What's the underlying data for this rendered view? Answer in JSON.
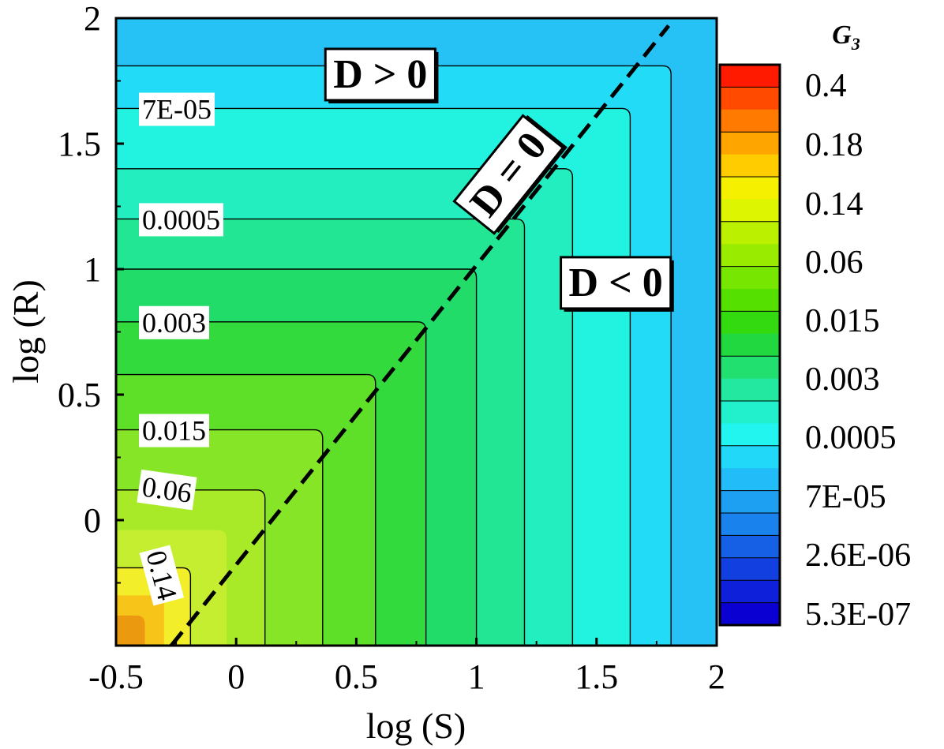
{
  "chart_data": {
    "type": "heatmap",
    "xlabel": "log (S)",
    "ylabel": "log (R)",
    "xlim": [
      -0.5,
      2
    ],
    "ylim": [
      -0.5,
      2
    ],
    "x_ticks": [
      "-0.5",
      "0",
      "0.5",
      "1",
      "1.5",
      "2"
    ],
    "x_tick_values": [
      -0.5,
      0,
      0.5,
      1,
      1.5,
      2
    ],
    "y_ticks": [
      "0",
      "0.5",
      "1",
      "1.5",
      "2"
    ],
    "y_tick_values": [
      0,
      0.5,
      1,
      1.5,
      2
    ],
    "colorbar": {
      "title_base": "G",
      "title_sub": "3",
      "labels": [
        "0.4",
        "0.18",
        "0.14",
        "0.06",
        "0.015",
        "0.003",
        "0.0005",
        "7E-05",
        "2.6E-06",
        "5.3E-07"
      ],
      "colors": [
        "#ff1a00",
        "#ff4a00",
        "#ff7a00",
        "#ffa500",
        "#ffcc00",
        "#f5ef00",
        "#ddf500",
        "#bbf000",
        "#99ec00",
        "#77e600",
        "#55e000",
        "#33da10",
        "#22d840",
        "#22e070",
        "#22e8a0",
        "#22f0cc",
        "#22f4f0",
        "#22d8f8",
        "#22bcf8",
        "#1ea0f2",
        "#1a82ec",
        "#1660e6",
        "#1240e0",
        "#0e20da",
        "#0a00d2"
      ]
    },
    "contours": [
      {
        "level": "0.14",
        "r": 0.31
      },
      {
        "level": "0.06",
        "r": 0.62
      },
      {
        "level": "0.015",
        "r": 0.86
      },
      {
        "level": "",
        "r": 1.08
      },
      {
        "level": "0.003",
        "r": 1.29
      },
      {
        "level": "",
        "r": 1.5
      },
      {
        "level": "0.0005",
        "r": 1.7
      },
      {
        "level": "",
        "r": 1.9
      },
      {
        "level": "7E-05",
        "r": 2.14
      },
      {
        "level": "",
        "r": 2.31
      }
    ],
    "regions": [
      {
        "fill": "#eb9a10",
        "r": 0.12
      },
      {
        "fill": "#f7c41a",
        "r": 0.2
      },
      {
        "fill": "#f2ef2a",
        "r": 0.31
      },
      {
        "fill": "#c6ee30",
        "r": 0.46
      },
      {
        "fill": "#a8ea28",
        "r": 0.62
      },
      {
        "fill": "#86e526",
        "r": 0.86
      },
      {
        "fill": "#5ee028",
        "r": 1.08
      },
      {
        "fill": "#33da3d",
        "r": 1.29
      },
      {
        "fill": "#22dc6a",
        "r": 1.5
      },
      {
        "fill": "#22e694",
        "r": 1.7
      },
      {
        "fill": "#22eebf",
        "r": 1.9
      },
      {
        "fill": "#22f2e0",
        "r": 2.14
      },
      {
        "fill": "#22dcf7",
        "r": 2.31
      },
      {
        "fill": "#26c2f6",
        "r": 2.5
      },
      {
        "fill": "#2aa6f0",
        "r": 9
      }
    ],
    "dashed_line": {
      "label": "D = 0",
      "from": [
        -0.27,
        -0.5
      ],
      "to": [
        1.8,
        1.97
      ]
    },
    "region_labels": [
      {
        "text": "D > 0",
        "x": 0.6,
        "y": 1.78
      },
      {
        "text": "D < 0",
        "x": 1.58,
        "y": 0.95
      },
      {
        "text": "D = 0",
        "x": 1.13,
        "y": 1.38
      }
    ]
  }
}
